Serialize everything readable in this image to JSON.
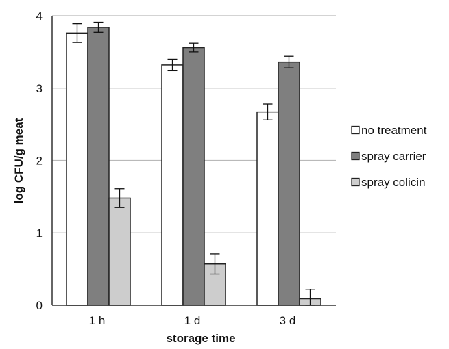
{
  "chart_data": {
    "type": "bar",
    "title": "",
    "xlabel": "storage time",
    "ylabel": "log CFU/g meat",
    "categories": [
      "1 h",
      "1 d",
      "3 d"
    ],
    "ylim": [
      0,
      4
    ],
    "yticks": [
      "0",
      "1",
      "2",
      "3",
      "4"
    ],
    "grid": true,
    "legend_position": "right",
    "series": [
      {
        "name": "no treatment",
        "color": "#ffffff",
        "values": [
          3.76,
          3.32,
          2.67
        ],
        "errors": [
          0.13,
          0.08,
          0.11
        ]
      },
      {
        "name": "spray carrier",
        "color": "#7f7f7f",
        "values": [
          3.84,
          3.56,
          3.36
        ],
        "errors": [
          0.07,
          0.06,
          0.08
        ]
      },
      {
        "name": "spray colicin",
        "color": "#cdcdcd",
        "values": [
          1.48,
          0.57,
          0.09
        ],
        "errors": [
          0.13,
          0.14,
          0.13
        ]
      }
    ]
  }
}
